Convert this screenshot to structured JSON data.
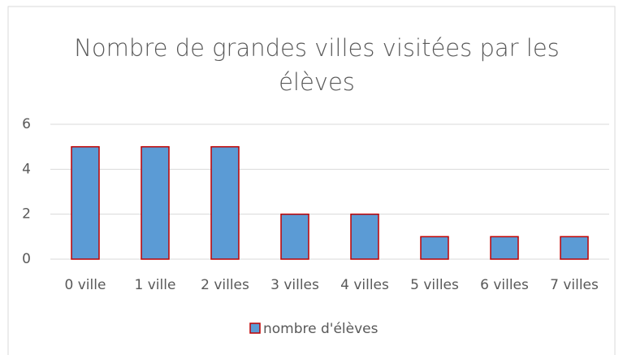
{
  "chart_data": {
    "type": "bar",
    "title": "Nombre de grandes villes visitées par les élèves",
    "categories": [
      "0 ville",
      "1 ville",
      "2 villes",
      "3 villes",
      "4 villes",
      "5 villes",
      "6 villes",
      "7 villes"
    ],
    "series": [
      {
        "name": "nombre d'élèves",
        "color": "#5b9bd5",
        "edgecolor": "#c00000",
        "values": [
          5,
          5,
          5,
          2,
          2,
          1,
          1,
          1
        ]
      }
    ],
    "ylim": [
      0,
      6
    ],
    "yticks": [
      0,
      2,
      4,
      6
    ],
    "grid": true,
    "legend": "bottom"
  }
}
